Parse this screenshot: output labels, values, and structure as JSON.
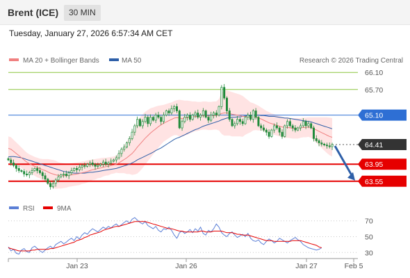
{
  "header": {
    "instrument": "Brent (ICE)",
    "timeframe": "30 MIN",
    "datetime": "Tuesday, January 27, 2026 6:57:34 AM CET"
  },
  "legend": {
    "ma20": "MA 20 + Bollinger Bands",
    "ma50": "MA 50",
    "credit": "Research © 2026 Trading Central",
    "rsi": "RSI",
    "ma9": "9MA"
  },
  "colors": {
    "candle": "#1f8a3a",
    "ma20": "#f08080",
    "band": "#ffe3e3",
    "ma50": "#2e5fa8",
    "resistance": "#8cc63f",
    "pivot": "#2e6fd4",
    "support": "#e60000",
    "rsi": "#5b7fd6",
    "rsi_ma": "#e60000",
    "last": "#333333"
  },
  "chart_data": [
    {
      "type": "candlestick",
      "x_ticks": [
        "Jan 23",
        "Jan 26",
        "Jan 27",
        "Feb 5"
      ],
      "ylim": [
        63.4,
        66.25
      ],
      "levels": [
        {
          "value": 66.1,
          "label": "66.10",
          "kind": "resistance"
        },
        {
          "value": 65.7,
          "label": "65.70",
          "kind": "resistance"
        },
        {
          "value": 65.1,
          "label": "65.10",
          "kind": "pivot"
        },
        {
          "value": 64.41,
          "label": "64.41",
          "kind": "last"
        },
        {
          "value": 63.95,
          "label": "63.95",
          "kind": "support"
        },
        {
          "value": 63.55,
          "label": "63.55",
          "kind": "support"
        }
      ],
      "close": [
        64.05,
        63.98,
        63.92,
        63.85,
        63.8,
        63.78,
        63.72,
        63.7,
        63.75,
        63.8,
        63.85,
        63.8,
        63.75,
        63.68,
        63.6,
        63.5,
        63.42,
        63.5,
        63.58,
        63.65,
        63.7,
        63.72,
        63.68,
        63.75,
        63.8,
        63.85,
        63.82,
        63.88,
        63.92,
        63.9,
        63.95,
        63.98,
        63.94,
        63.9,
        63.92,
        63.95,
        64.0,
        63.95,
        63.98,
        64.02,
        64.05,
        64.1,
        64.2,
        64.3,
        64.35,
        64.45,
        64.55,
        64.7,
        64.85,
        65.0,
        64.85,
        64.95,
        65.05,
        64.9,
        65.05,
        64.98,
        65.1,
        65.05,
        64.95,
        65.1,
        65.2,
        65.15,
        65.25,
        65.3,
        65.2,
        64.8,
        64.95,
        65.05,
        65.1,
        65.0,
        65.1,
        65.15,
        65.05,
        65.1,
        65.2,
        65.05,
        64.98,
        65.1,
        65.15,
        65.1,
        65.3,
        65.75,
        65.5,
        65.2,
        65.0,
        64.85,
        64.9,
        65.0,
        64.95,
        64.9,
        65.05,
        65.1,
        65.0,
        65.2,
        65.05,
        64.85,
        64.8,
        64.75,
        64.7,
        64.6,
        64.75,
        64.85,
        64.8,
        64.7,
        64.6,
        64.85,
        64.95,
        64.85,
        64.8,
        64.75,
        64.8,
        64.85,
        64.95,
        64.85,
        64.9,
        64.8,
        64.55,
        64.5,
        64.45,
        64.42,
        64.4,
        64.38,
        64.36,
        64.41
      ],
      "ma20": [
        64.32,
        64.3,
        64.25,
        64.2,
        64.15,
        64.1,
        64.05,
        64.0,
        63.96,
        63.93,
        63.9,
        63.87,
        63.85,
        63.82,
        63.8,
        63.77,
        63.74,
        63.72,
        63.7,
        63.69,
        63.68,
        63.68,
        63.68,
        63.69,
        63.7,
        63.71,
        63.72,
        63.73,
        63.75,
        63.76,
        63.78,
        63.8,
        63.82,
        63.83,
        63.85,
        63.86,
        63.88,
        63.89,
        63.9,
        63.92,
        63.93,
        63.95,
        63.98,
        64.02,
        64.06,
        64.1,
        64.15,
        64.2,
        64.27,
        64.35,
        64.42,
        64.49,
        64.56,
        64.62,
        64.68,
        64.73,
        64.78,
        64.83,
        64.87,
        64.91,
        64.94,
        64.97,
        65.0,
        65.03,
        65.04,
        65.03,
        65.02,
        65.03,
        65.04,
        65.05,
        65.06,
        65.07,
        65.07,
        65.08,
        65.09,
        65.09,
        65.08,
        65.08,
        65.09,
        65.09,
        65.11,
        65.14,
        65.15,
        65.15,
        65.14,
        65.12,
        65.11,
        65.1,
        65.09,
        65.07,
        65.07,
        65.06,
        65.05,
        65.06,
        65.05,
        65.03,
        65.01,
        64.98,
        64.95,
        64.92,
        64.9,
        64.88,
        64.86,
        64.84,
        64.82,
        64.81,
        64.81,
        64.8,
        64.79,
        64.79,
        64.79,
        64.8,
        64.81,
        64.81,
        64.82,
        64.81,
        64.78,
        64.75,
        64.72,
        64.69,
        64.66,
        64.63,
        64.6,
        64.58
      ],
      "bb_upper": [
        64.6,
        64.58,
        64.52,
        64.46,
        64.4,
        64.34,
        64.28,
        64.22,
        64.18,
        64.15,
        64.12,
        64.1,
        64.08,
        64.07,
        64.07,
        64.07,
        64.06,
        64.05,
        64.03,
        64.0,
        63.98,
        63.97,
        63.96,
        63.96,
        63.97,
        63.98,
        63.99,
        64.0,
        64.01,
        64.02,
        64.04,
        64.05,
        64.06,
        64.07,
        64.08,
        64.09,
        64.1,
        64.1,
        64.11,
        64.12,
        64.13,
        64.15,
        64.22,
        64.3,
        64.38,
        64.48,
        64.58,
        64.7,
        64.83,
        64.97,
        65.05,
        65.12,
        65.18,
        65.22,
        65.26,
        65.28,
        65.3,
        65.32,
        65.33,
        65.34,
        65.36,
        65.38,
        65.4,
        65.43,
        65.45,
        65.46,
        65.45,
        65.44,
        65.44,
        65.43,
        65.42,
        65.42,
        65.41,
        65.41,
        65.42,
        65.42,
        65.41,
        65.41,
        65.42,
        65.42,
        65.48,
        65.62,
        65.68,
        65.68,
        65.66,
        65.64,
        65.62,
        65.6,
        65.58,
        65.55,
        65.5,
        65.45,
        65.4,
        65.38,
        65.35,
        65.32,
        65.28,
        65.24,
        65.2,
        65.17,
        65.14,
        65.12,
        65.1,
        65.08,
        65.06,
        65.05,
        65.05,
        65.04,
        65.03,
        65.03,
        65.03,
        65.03,
        65.04,
        65.04,
        65.05,
        65.05,
        65.05,
        65.05,
        65.05,
        65.05,
        65.05,
        65.05,
        65.04,
        65.03
      ],
      "bb_lower": [
        64.05,
        64.02,
        63.98,
        63.94,
        63.9,
        63.86,
        63.82,
        63.78,
        63.74,
        63.71,
        63.68,
        63.64,
        63.62,
        63.57,
        63.53,
        63.47,
        63.42,
        63.39,
        63.37,
        63.38,
        63.38,
        63.39,
        63.4,
        63.42,
        63.43,
        63.44,
        63.45,
        63.46,
        63.49,
        63.5,
        63.52,
        63.55,
        63.58,
        63.59,
        63.62,
        63.63,
        63.66,
        63.68,
        63.69,
        63.72,
        63.73,
        63.75,
        63.74,
        63.74,
        63.74,
        63.72,
        63.72,
        63.7,
        63.71,
        63.73,
        63.79,
        63.86,
        63.94,
        64.02,
        64.1,
        64.18,
        64.26,
        64.34,
        64.41,
        64.48,
        64.52,
        64.56,
        64.6,
        64.63,
        64.63,
        64.6,
        64.59,
        64.62,
        64.64,
        64.67,
        64.7,
        64.72,
        64.73,
        64.75,
        64.76,
        64.76,
        64.75,
        64.75,
        64.76,
        64.76,
        64.74,
        64.66,
        64.62,
        64.62,
        64.62,
        64.6,
        64.6,
        64.6,
        64.6,
        64.59,
        64.64,
        64.67,
        64.7,
        64.74,
        64.75,
        64.74,
        64.74,
        64.72,
        64.7,
        64.67,
        64.66,
        64.64,
        64.62,
        64.6,
        64.58,
        64.57,
        64.57,
        64.56,
        64.55,
        64.55,
        64.55,
        64.57,
        64.58,
        64.58,
        64.59,
        64.57,
        64.51,
        64.45,
        64.39,
        64.33,
        64.27,
        64.21,
        64.16,
        64.13
      ],
      "ma50": [
        64.12,
        64.13,
        64.13,
        64.12,
        64.11,
        64.1,
        64.08,
        64.06,
        64.04,
        64.02,
        64.0,
        63.98,
        63.96,
        63.94,
        63.92,
        63.9,
        63.88,
        63.86,
        63.84,
        63.82,
        63.8,
        63.78,
        63.77,
        63.76,
        63.75,
        63.74,
        63.74,
        63.74,
        63.74,
        63.74,
        63.75,
        63.76,
        63.76,
        63.77,
        63.78,
        63.79,
        63.8,
        63.81,
        63.82,
        63.83,
        63.84,
        63.85,
        63.87,
        63.89,
        63.91,
        63.93,
        63.95,
        63.98,
        64.01,
        64.05,
        64.08,
        64.11,
        64.14,
        64.17,
        64.2,
        64.23,
        64.27,
        64.3,
        64.33,
        64.37,
        64.41,
        64.45,
        64.49,
        64.53,
        64.56,
        64.58,
        64.61,
        64.64,
        64.67,
        64.7,
        64.73,
        64.76,
        64.78,
        64.81,
        64.84,
        64.86,
        64.88,
        64.9,
        64.92,
        64.94,
        64.96,
        64.99,
        65.01,
        65.03,
        65.04,
        65.05,
        65.05,
        65.06,
        65.06,
        65.07,
        65.08,
        65.08,
        65.09,
        65.1,
        65.1,
        65.1,
        65.09,
        65.09,
        65.08,
        65.07,
        65.07,
        65.07,
        65.06,
        65.05,
        65.04,
        65.03,
        65.03,
        65.02,
        65.01,
        65.0,
        64.99,
        64.98,
        64.97,
        64.96,
        64.95,
        64.94,
        64.92,
        64.9,
        64.88,
        64.86,
        64.84,
        64.82,
        64.8,
        64.78
      ]
    },
    {
      "type": "line",
      "name": "RSI",
      "ylim": [
        25,
        75
      ],
      "y_ticks": [
        70,
        50,
        30
      ],
      "rsi": [
        37,
        32,
        34,
        29,
        28,
        33,
        35,
        31,
        30,
        36,
        38,
        35,
        32,
        30,
        33,
        36,
        38,
        35,
        40,
        42,
        44,
        41,
        43,
        46,
        48,
        45,
        50,
        47,
        52,
        55,
        53,
        57,
        60,
        58,
        56,
        59,
        62,
        60,
        63,
        61,
        64,
        66,
        63,
        65,
        68,
        70,
        67,
        72,
        74,
        71,
        68,
        66,
        69,
        64,
        62,
        60,
        63,
        58,
        56,
        60,
        59,
        62,
        58,
        52,
        48,
        55,
        57,
        54,
        56,
        59,
        55,
        60,
        57,
        62,
        54,
        52,
        58,
        56,
        60,
        66,
        62,
        55,
        52,
        50,
        54,
        56,
        52,
        49,
        51,
        53,
        50,
        54,
        48,
        45,
        44,
        46,
        42,
        40,
        44,
        47,
        45,
        42,
        44,
        48,
        46,
        44,
        42,
        45,
        47,
        49,
        46,
        44,
        40,
        38,
        36,
        35,
        34,
        33,
        34,
        36
      ],
      "rsi_ma": [
        36,
        35,
        34,
        33,
        32,
        32,
        32,
        32,
        32,
        33,
        33,
        34,
        34,
        34,
        34,
        34,
        35,
        35,
        36,
        37,
        38,
        39,
        40,
        41,
        42,
        43,
        45,
        46,
        47,
        49,
        50,
        52,
        53,
        54,
        55,
        56,
        58,
        59,
        60,
        61,
        62,
        63,
        63,
        64,
        65,
        66,
        67,
        68,
        69,
        69,
        69,
        69,
        69,
        68,
        67,
        66,
        65,
        64,
        63,
        62,
        61,
        60,
        60,
        59,
        58,
        57,
        57,
        56,
        56,
        56,
        56,
        56,
        56,
        57,
        57,
        56,
        56,
        56,
        57,
        57,
        57,
        57,
        56,
        55,
        55,
        55,
        54,
        53,
        53,
        52,
        52,
        52,
        51,
        50,
        49,
        48,
        47,
        46,
        45,
        45,
        45,
        44,
        44,
        44,
        44,
        44,
        44,
        44,
        45,
        45,
        45,
        45,
        44,
        43,
        42,
        41,
        40,
        39,
        37,
        36
      ]
    }
  ]
}
